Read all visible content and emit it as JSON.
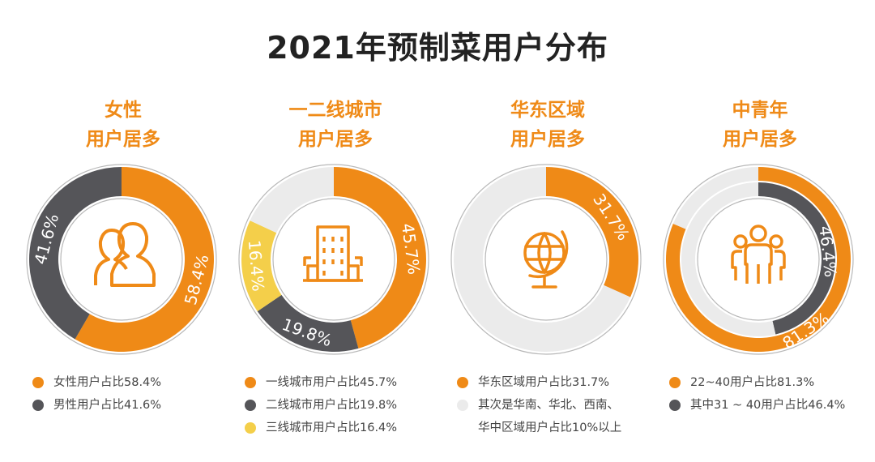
{
  "title": "2021年预制菜用户分布",
  "colors": {
    "orange": "#ef8a17",
    "gray": "#555559",
    "yellow": "#f4cf4a",
    "light": "#ebebeb",
    "outline": "#b8b8b8"
  },
  "chart_data": [
    {
      "type": "pie",
      "heading": [
        "女性",
        "用户居多"
      ],
      "icon": "users-icon",
      "segments": [
        {
          "value": 58.4,
          "label": "58.4%",
          "color": "#ef8a17"
        },
        {
          "value": 41.6,
          "label": "41.6%",
          "color": "#555559"
        }
      ],
      "legend": [
        {
          "text": "女性用户占比58.4%",
          "color": "#ef8a17"
        },
        {
          "text": "男性用户占比41.6%",
          "color": "#555559"
        }
      ]
    },
    {
      "type": "pie",
      "heading": [
        "一二线城市",
        "用户居多"
      ],
      "icon": "building-icon",
      "segments": [
        {
          "value": 45.7,
          "label": "45.7%",
          "color": "#ef8a17"
        },
        {
          "value": 19.8,
          "label": "19.8%",
          "color": "#555559"
        },
        {
          "value": 16.4,
          "label": "16.4%",
          "color": "#f4cf4a"
        },
        {
          "value": 18.1,
          "label": "",
          "color": "#ebebeb"
        }
      ],
      "legend": [
        {
          "text": "一线城市用户占比45.7%",
          "color": "#ef8a17"
        },
        {
          "text": "二线城市用户占比19.8%",
          "color": "#555559"
        },
        {
          "text": "三线城市用户占比16.4%",
          "color": "#f4cf4a"
        }
      ]
    },
    {
      "type": "pie",
      "heading": [
        "华东区域",
        "用户居多"
      ],
      "icon": "globe-icon",
      "segments": [
        {
          "value": 31.7,
          "label": "31.7%",
          "color": "#ef8a17"
        },
        {
          "value": 68.3,
          "label": "",
          "color": "#ebebeb"
        }
      ],
      "legend": [
        {
          "text": "华东区域用户占比31.7%",
          "color": "#ef8a17"
        },
        {
          "text": "其次是华南、华北、西南、",
          "color": "#ebebeb"
        },
        {
          "text": "华中区域用户占比10%以上",
          "color": ""
        }
      ]
    },
    {
      "type": "pie",
      "heading": [
        "中青年",
        "用户居多"
      ],
      "icon": "group-icon",
      "segments": [
        {
          "value": 81.3,
          "label": "81.3%",
          "color": "#ef8a17"
        },
        {
          "value": 18.7,
          "label": "",
          "color": "#ebebeb"
        }
      ],
      "inner_ring": [
        {
          "value": 46.4,
          "label": "46.4%",
          "color": "#555559"
        },
        {
          "value": 53.6,
          "label": "",
          "color": "#ebebeb"
        }
      ],
      "legend": [
        {
          "text": "22~40用户占比81.3%",
          "color": "#ef8a17"
        },
        {
          "text": "其中31 ~ 40用户占比46.4%",
          "color": "#555559"
        }
      ]
    }
  ]
}
